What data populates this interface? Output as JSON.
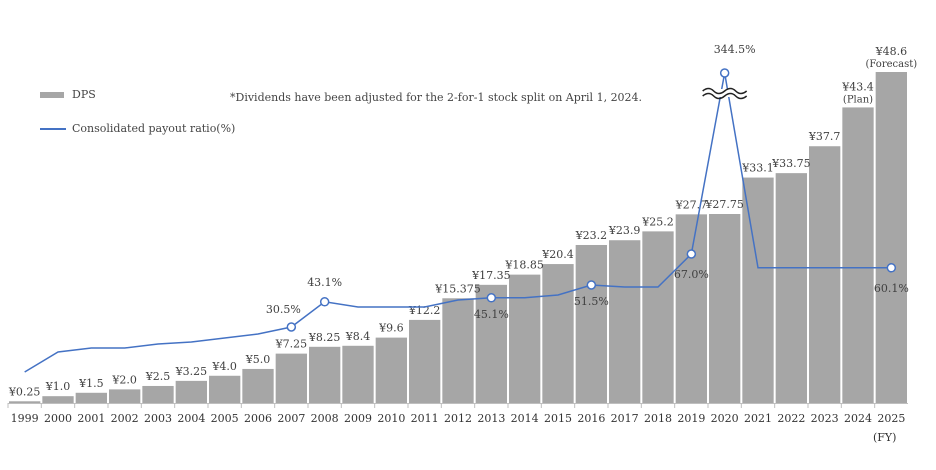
{
  "legend": {
    "dps_label": "DPS",
    "ratio_label": "Consolidated payout ratio(%)"
  },
  "note": "*Dividends have been adjusted for the 2-for-1 stock split on April 1, 2024.",
  "fy_label": "(FY)",
  "colors": {
    "bar": "#a6a6a6",
    "line": "#4472c4",
    "axis": "#bfbfbf",
    "text": "#404040"
  },
  "chart_data": {
    "type": "bar",
    "categories": [
      "1999",
      "2000",
      "2001",
      "2002",
      "2003",
      "2004",
      "2005",
      "2006",
      "2007",
      "2008",
      "2009",
      "2010",
      "2011",
      "2012",
      "2013",
      "2014",
      "2015",
      "2016",
      "2017",
      "2018",
      "2019",
      "2020",
      "2021",
      "2022",
      "2023",
      "2024",
      "2025"
    ],
    "series": [
      {
        "name": "DPS",
        "type": "bar",
        "values": [
          0.25,
          1.0,
          1.5,
          2.0,
          2.5,
          3.25,
          4.0,
          5.0,
          7.25,
          8.25,
          8.4,
          9.6,
          12.2,
          15.375,
          17.35,
          18.85,
          20.4,
          23.2,
          23.9,
          25.2,
          27.7,
          27.75,
          33.1,
          33.75,
          37.7,
          43.4,
          48.6
        ],
        "labels": [
          "¥0.25",
          "¥1.0",
          "¥1.5",
          "¥2.0",
          "¥2.5",
          "¥3.25",
          "¥4.0",
          "¥5.0",
          "¥7.25",
          "¥8.25",
          "¥8.4",
          "¥9.6",
          "¥12.2",
          "¥15.375",
          "¥17.35",
          "¥18.85",
          "¥20.4",
          "¥23.2",
          "¥23.9",
          "¥25.2",
          "¥27.7",
          "¥27.75",
          "¥33.1",
          "¥33.75",
          "¥37.7",
          "¥43.4",
          "¥48.6"
        ],
        "sublabels": {
          "2024": "(Plan)",
          "2025": "(Forecast)"
        }
      },
      {
        "name": "Consolidated payout ratio(%)",
        "type": "line",
        "values": [
          8,
          18,
          20,
          20,
          22,
          23,
          25,
          27,
          30.5,
          43.1,
          40.5,
          40.5,
          40.5,
          44,
          45.1,
          45.1,
          46.5,
          51.5,
          50.5,
          50.5,
          67.0,
          344.5,
          60.1,
          60.1,
          60.1,
          60.1,
          60.1
        ],
        "labeled_points": [
          {
            "category": "2007",
            "label": "30.5%"
          },
          {
            "category": "2008",
            "label": "43.1%"
          },
          {
            "category": "2013",
            "label": "45.1%"
          },
          {
            "category": "2016",
            "label": "51.5%"
          },
          {
            "category": "2019",
            "label": "67.0%"
          },
          {
            "category": "2020",
            "label": "344.5%"
          },
          {
            "category": "2025",
            "label": "60.1%"
          }
        ]
      }
    ],
    "ylim": [
      0,
      50
    ],
    "axis_break": true,
    "xlabel": "(FY)"
  }
}
